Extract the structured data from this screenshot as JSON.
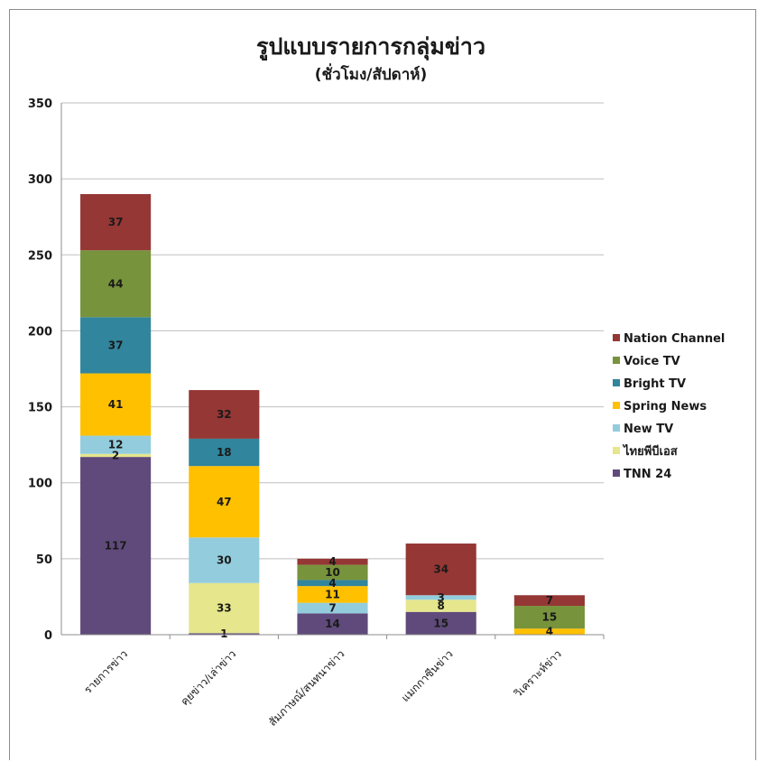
{
  "chart_data": {
    "type": "bar",
    "stacked": true,
    "title": "รูปแบบรายการกลุ่มข่าว",
    "subtitle": "(ชั่วโมง/สัปดาห์)",
    "xlabel": "",
    "ylabel": "",
    "ylim": [
      0,
      350
    ],
    "yticks": [
      0,
      50,
      100,
      150,
      200,
      250,
      300,
      350
    ],
    "grid": true,
    "legend_position": "right",
    "categories": [
      "รายการข่าว",
      "คุยข่าว/เล่าข่าว",
      "สัมภาษณ์/สนทนาข่าว",
      "แมกกาซีนข่าว",
      "วิเคราะห์ข่าว"
    ],
    "series": [
      {
        "name": "TNN 24",
        "color": "#604a7b",
        "values": [
          117,
          1,
          14,
          15,
          0
        ]
      },
      {
        "name": "ไทยพีบีเอส",
        "color": "#e6e68c",
        "values": [
          2,
          33,
          0,
          8,
          0
        ]
      },
      {
        "name": "New TV",
        "color": "#93cddd",
        "values": [
          12,
          30,
          7,
          3,
          0
        ]
      },
      {
        "name": "Spring News",
        "color": "#ffc000",
        "values": [
          41,
          47,
          11,
          0,
          4
        ]
      },
      {
        "name": "Bright TV",
        "color": "#31859c",
        "values": [
          37,
          18,
          4,
          0,
          0
        ]
      },
      {
        "name": "Voice TV",
        "color": "#77933c",
        "values": [
          44,
          0,
          10,
          0,
          15
        ]
      },
      {
        "name": "Nation Channel",
        "color": "#953735",
        "values": [
          37,
          32,
          4,
          34,
          7
        ]
      }
    ],
    "data_labels": [
      [
        "117",
        "1",
        "14",
        "15",
        ""
      ],
      [
        "2",
        "33",
        "",
        "8",
        ""
      ],
      [
        "12",
        "30",
        "7",
        "3",
        ""
      ],
      [
        "41",
        "47",
        "11",
        "",
        "4"
      ],
      [
        "37",
        "18",
        "4",
        "",
        ""
      ],
      [
        "44",
        "",
        "10",
        "",
        "15"
      ],
      [
        "37",
        "32",
        "4",
        "34",
        "7"
      ]
    ]
  }
}
